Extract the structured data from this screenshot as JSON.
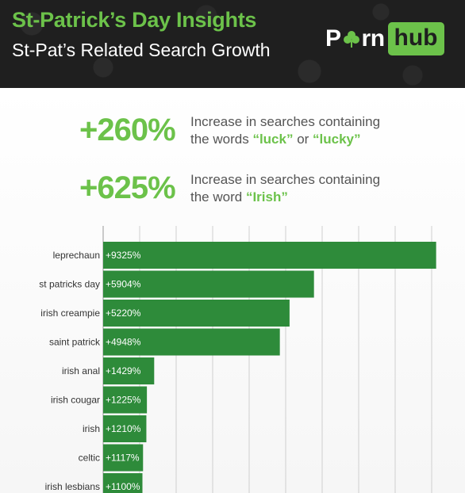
{
  "header": {
    "title": "St-Patrick’s Day Insights",
    "subtitle": "St-Pat’s Related Search Growth",
    "logo_left": "P",
    "logo_mid": "rn",
    "logo_right": "hub"
  },
  "stats": [
    {
      "percent": "+260%",
      "line1": "Increase in searches containing",
      "line2_pre": "the words ",
      "line2_kw1": "“luck”",
      "line2_mid": " or ",
      "line2_kw2": "“lucky”"
    },
    {
      "percent": "+625%",
      "line1": "Increase in searches containing",
      "line2_pre": "the word ",
      "line2_kw1": "“Irish”",
      "line2_mid": "",
      "line2_kw2": ""
    }
  ],
  "colors": {
    "accent": "#6cc24a",
    "bar": "#2e8b3a",
    "header_bg": "#1f1f1f"
  },
  "chart_data": {
    "type": "bar",
    "orientation": "horizontal",
    "categories": [
      "leprechaun",
      "st patricks day",
      "irish creampie",
      "saint patrick",
      "irish anal",
      "irish cougar",
      "irish",
      "celtic",
      "irish lesbians"
    ],
    "values": [
      9325,
      5904,
      5220,
      4948,
      1429,
      1225,
      1210,
      1117,
      1100
    ],
    "labels": [
      "+9325%",
      "+5904%",
      "+5220%",
      "+4948%",
      "+1429%",
      "+1225%",
      "+1210%",
      "+1117%",
      "+1100%"
    ],
    "xlim": [
      0,
      9600
    ],
    "grid": true
  }
}
